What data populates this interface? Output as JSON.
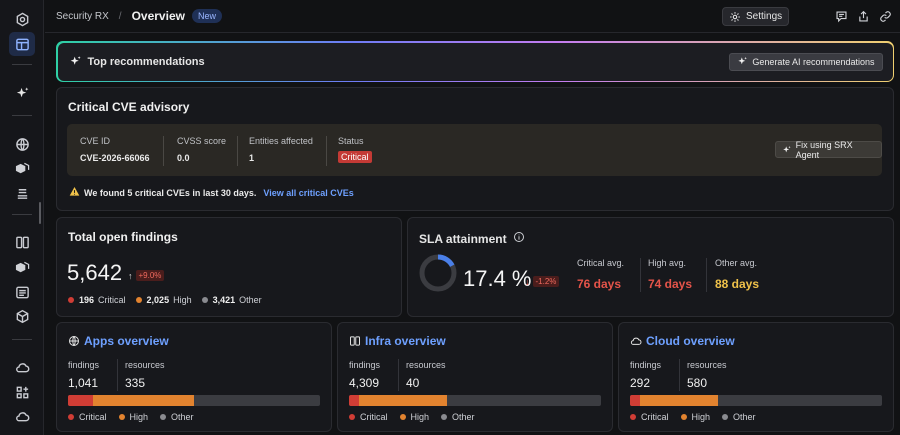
{
  "header": {
    "breadcrumb": "Security RX",
    "separator": "/",
    "title": "Overview",
    "badge": "New",
    "settings_label": "Settings"
  },
  "recommendations": {
    "title": "Top recommendations",
    "button_label": "Generate AI recommendations"
  },
  "cve_advisory": {
    "title": "Critical CVE advisory",
    "columns": [
      {
        "label": "CVE ID",
        "value": "CVE-2026-66066"
      },
      {
        "label": "CVSS score",
        "value": "0.0"
      },
      {
        "label": "Entities affected",
        "value": "1"
      },
      {
        "label": "Status",
        "value": "Critical"
      }
    ],
    "fix_button": "Fix using SRX Agent",
    "note": "We found 5 critical CVEs in last 30 days.",
    "link": "View all critical CVEs"
  },
  "findings": {
    "title": "Total open findings",
    "total": "5,642",
    "delta": "+9.0%",
    "legend": [
      {
        "count": "196",
        "label": "Critical",
        "color": "#d03d35"
      },
      {
        "count": "2,025",
        "label": "High",
        "color": "#e2832f"
      },
      {
        "count": "3,421",
        "label": "Other",
        "color": "#8a8b90"
      }
    ]
  },
  "sla": {
    "title": "SLA attainment",
    "percent": "17.4 %",
    "percent_value": 17.4,
    "delta": "-1.2%",
    "columns": [
      {
        "label": "Critical avg.",
        "value": "76 days",
        "color": "#e5544a"
      },
      {
        "label": "High avg.",
        "value": "74 days",
        "color": "#e5544a"
      },
      {
        "label": "Other avg.",
        "value": "88 days",
        "color": "#f0c24a"
      }
    ]
  },
  "overviews": [
    {
      "title": "Apps overview",
      "icon": "globe-icon",
      "findings_label": "findings",
      "findings": "1,041",
      "resources_label": "resources",
      "resources": "335",
      "critical_frac": 0.1,
      "high_frac": 0.4
    },
    {
      "title": "Infra overview",
      "icon": "server-icon",
      "findings_label": "findings",
      "findings": "4,309",
      "resources_label": "resources",
      "resources": "40",
      "critical_frac": 0.04,
      "high_frac": 0.35
    },
    {
      "title": "Cloud overview",
      "icon": "cloud-icon",
      "findings_label": "findings",
      "findings": "292",
      "resources_label": "resources",
      "resources": "580",
      "critical_frac": 0.04,
      "high_frac": 0.31
    }
  ],
  "bar_legend": [
    "Critical",
    "High",
    "Other"
  ],
  "colors": {
    "critical": "#d03d35",
    "high": "#e2832f",
    "other": "#8a8b90",
    "link": "#6ea0ff"
  }
}
